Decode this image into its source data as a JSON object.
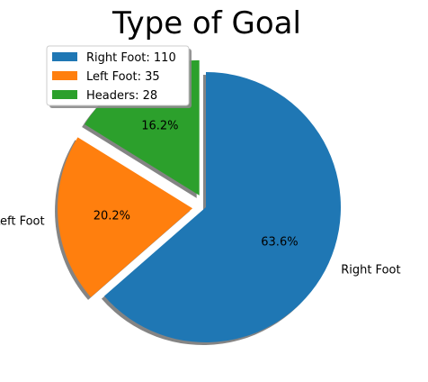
{
  "chart_data": {
    "type": "pie",
    "title": "Type of Goal",
    "categories": [
      "Right Foot",
      "Left Foot",
      "Headers"
    ],
    "values": [
      110,
      35,
      28
    ],
    "percent_labels": [
      "63.6%",
      "20.2%",
      "16.2%"
    ],
    "legend_labels": [
      "Right Foot: 110",
      "Left Foot: 35",
      "Headers: 28"
    ],
    "colors": [
      "#1f77b4",
      "#ff7f0e",
      "#2ca02c"
    ],
    "exploded": [
      false,
      true,
      true
    ],
    "shadow": true,
    "start_angle_deg": 90,
    "direction": "clockwise",
    "legend_placement": "top-left"
  }
}
